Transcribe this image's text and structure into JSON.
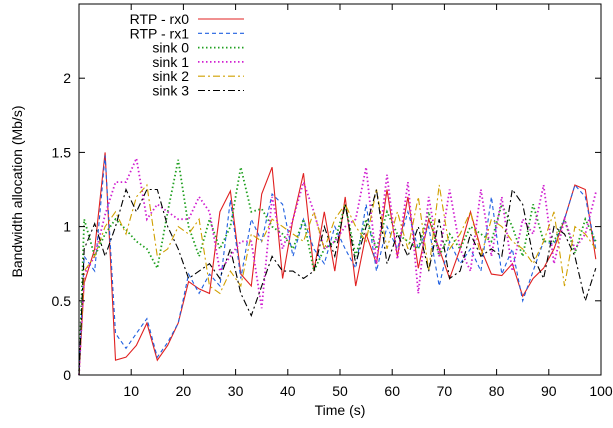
{
  "chart_data": {
    "type": "line",
    "xlabel": "Time (s)",
    "ylabel": "Bandwidth allocation (Mb/s)",
    "xlim": [
      0,
      100
    ],
    "ylim": [
      0,
      2.5
    ],
    "xticks": [
      10,
      20,
      30,
      40,
      50,
      60,
      70,
      80,
      90,
      100
    ],
    "yticks": [
      0,
      0.5,
      1,
      1.5,
      2
    ],
    "ytick_labels": [
      "0",
      "0.5",
      "1",
      "1.5",
      "2"
    ],
    "grid": false,
    "legend_position": "top-right",
    "x": [
      0,
      1,
      3,
      5,
      7,
      9,
      11,
      13,
      15,
      17,
      19,
      21,
      23,
      25,
      27,
      29,
      31,
      33,
      35,
      37,
      39,
      41,
      43,
      45,
      47,
      49,
      51,
      53,
      55,
      57,
      59,
      61,
      63,
      65,
      67,
      69,
      71,
      73,
      75,
      77,
      79,
      81,
      83,
      85,
      87,
      89,
      91,
      93,
      95,
      97,
      99
    ],
    "series": [
      {
        "name": "RTP - rx0",
        "color": "#e02020",
        "dash": "solid",
        "values": [
          0,
          0.62,
          0.85,
          1.5,
          0.1,
          0.12,
          0.2,
          0.35,
          0.1,
          0.2,
          0.35,
          0.63,
          0.58,
          0.55,
          1.1,
          1.24,
          0.68,
          0.6,
          1.22,
          1.4,
          0.65,
          1.05,
          1.36,
          0.7,
          1.1,
          0.7,
          1.2,
          0.6,
          0.95,
          0.75,
          1.25,
          0.8,
          1.2,
          0.72,
          1.05,
          0.85,
          0.65,
          0.85,
          1.1,
          0.85,
          0.68,
          0.67,
          0.75,
          0.53,
          0.65,
          0.72,
          0.85,
          1.05,
          1.28,
          1.25,
          0.78
        ]
      },
      {
        "name": "RTP - rx1",
        "color": "#2060e0",
        "dash": "dashed",
        "values": [
          0,
          0.8,
          0.7,
          1.48,
          0.28,
          0.18,
          0.28,
          0.38,
          0.12,
          0.22,
          0.35,
          0.68,
          0.55,
          0.68,
          0.6,
          1.18,
          0.65,
          1.05,
          0.9,
          1.22,
          1.15,
          0.8,
          1.05,
          0.85,
          0.75,
          1.0,
          0.85,
          0.72,
          1.15,
          0.7,
          1.0,
          0.85,
          1.1,
          0.85,
          1.0,
          0.6,
          0.9,
          0.75,
          0.85,
          0.7,
          1.2,
          0.68,
          0.85,
          0.5,
          0.7,
          0.9,
          0.88,
          1.05,
          1.28,
          1.2,
          0.85
        ]
      },
      {
        "name": "sink 0",
        "color": "#20a020",
        "dash": "dotted",
        "values": [
          0,
          1.05,
          0.8,
          0.95,
          1.05,
          0.98,
          0.9,
          0.85,
          0.72,
          1.1,
          1.45,
          1.0,
          0.8,
          1.05,
          0.85,
          1.0,
          1.4,
          1.1,
          1.12,
          1.0,
          0.95,
          0.85,
          1.05,
          0.7,
          0.85,
          0.9,
          1.15,
          0.8,
          1.05,
          0.85,
          1.1,
          0.95,
          0.9,
          0.85,
          1.1,
          0.8,
          0.95,
          0.85,
          1.0,
          0.95,
          0.9,
          1.15,
          1.0,
          0.8,
          1.15,
          0.9,
          0.9,
          1.05,
          0.82,
          1.05,
          0.9
        ]
      },
      {
        "name": "sink 1",
        "color": "#d020d0",
        "dash": "dotted",
        "values": [
          0,
          0.68,
          0.8,
          1.08,
          1.3,
          1.3,
          1.46,
          1.05,
          1.15,
          1.1,
          1.05,
          1.05,
          1.2,
          1.1,
          0.7,
          0.8,
          0.9,
          0.9,
          0.45,
          1.2,
          0.85,
          1.05,
          1.3,
          1.1,
          0.85,
          0.9,
          1.0,
          1.05,
          1.4,
          0.75,
          1.35,
          0.78,
          1.3,
          0.55,
          1.2,
          0.8,
          1.25,
          0.85,
          0.7,
          1.25,
          0.8,
          1.2,
          0.7,
          1.05,
          0.95,
          1.28,
          0.75,
          1.05,
          0.85,
          0.95,
          1.23
        ]
      },
      {
        "name": "sink 2",
        "color": "#d0a000",
        "dash": "dashdot",
        "values": [
          0,
          0.7,
          0.8,
          1.0,
          1.1,
          0.95,
          1.2,
          1.28,
          0.8,
          0.85,
          1.0,
          0.95,
          1.05,
          0.6,
          0.55,
          0.7,
          0.6,
          0.95,
          0.9,
          1.05,
          1.0,
          0.95,
          0.9,
          1.1,
          0.85,
          1.05,
          1.15,
          1.0,
          0.9,
          1.25,
          0.85,
          1.1,
          0.85,
          1.2,
          0.7,
          1.28,
          0.85,
          0.95,
          1.1,
          0.8,
          1.05,
          1.0,
          0.9,
          0.85,
          0.75,
          0.9,
          1.1,
          0.6,
          1.0,
          0.95,
          0.85
        ]
      },
      {
        "name": "sink 3",
        "color": "#000000",
        "dash": "dashdot",
        "values": [
          0,
          0.85,
          1.02,
          0.8,
          1.0,
          1.25,
          1.1,
          1.25,
          1.25,
          1.0,
          0.85,
          0.65,
          0.7,
          0.75,
          0.65,
          0.85,
          0.55,
          0.4,
          0.6,
          0.8,
          0.7,
          0.7,
          0.65,
          0.7,
          1.0,
          0.8,
          1.15,
          0.75,
          1.0,
          1.25,
          0.75,
          0.95,
          0.8,
          1.0,
          0.7,
          1.05,
          0.65,
          0.7,
          0.95,
          0.8,
          0.85,
          0.8,
          1.25,
          1.15,
          0.8,
          0.65,
          1.0,
          0.95,
          0.8,
          0.5,
          0.72
        ]
      }
    ]
  }
}
